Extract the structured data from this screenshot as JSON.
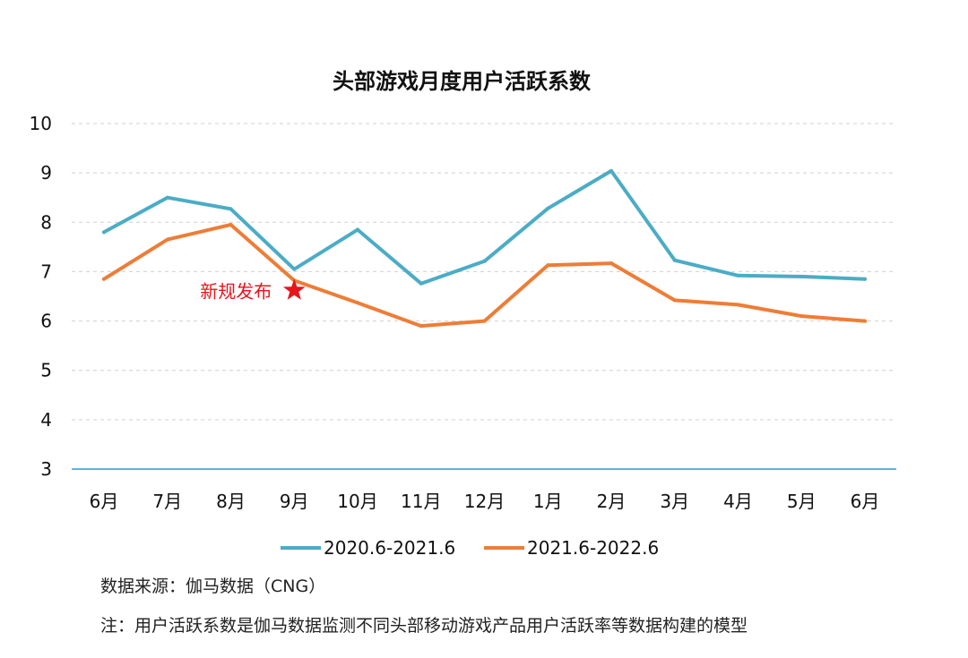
{
  "chart_data": {
    "type": "line",
    "title": "头部游戏月度用户活跃系数",
    "categories": [
      "6月",
      "7月",
      "8月",
      "9月",
      "10月",
      "11月",
      "12月",
      "1月",
      "2月",
      "3月",
      "4月",
      "5月",
      "6月"
    ],
    "ylim": [
      3,
      10
    ],
    "yticks": [
      "3",
      "4",
      "5",
      "6",
      "7",
      "8",
      "9",
      "10"
    ],
    "grid": true,
    "legend_position": "bottom",
    "series": [
      {
        "name": "2020.6-2021.6",
        "color": "#4bacc6",
        "values": [
          7.8,
          8.5,
          8.27,
          7.05,
          7.85,
          6.76,
          7.21,
          8.28,
          9.04,
          7.23,
          6.92,
          6.9,
          6.85
        ]
      },
      {
        "name": "2021.6-2022.6",
        "color": "#ee7d36",
        "values": [
          6.85,
          7.65,
          7.95,
          6.82,
          6.37,
          5.9,
          6.0,
          7.13,
          7.17,
          6.42,
          6.33,
          6.1,
          6.0
        ]
      }
    ],
    "annotation": {
      "text": "新规发布",
      "category": "9月",
      "y": 6.62,
      "marker": "star",
      "color": "#e8141b"
    }
  },
  "notes": {
    "source": "数据来源：伽马数据（CNG）",
    "footnote": "注：用户活跃系数是伽马数据监测不同头部移动游戏产品用户活跃率等数据构建的模型"
  }
}
